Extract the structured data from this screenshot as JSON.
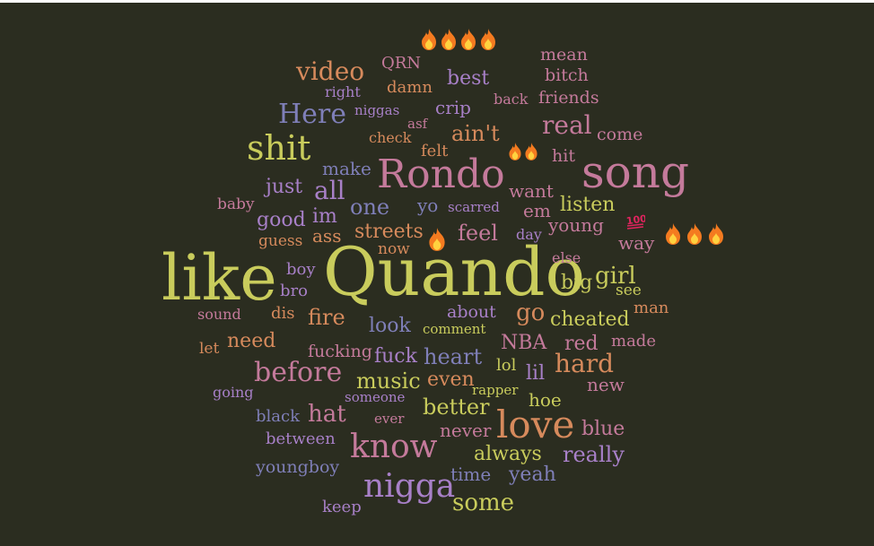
{
  "wordcloud": {
    "colors": {
      "green": "#c9cc5c",
      "mauve": "#c47a9b",
      "orange": "#d68a5c",
      "slate": "#7f7fb8",
      "purple": "#a880c8",
      "bg": "#2b2d20"
    },
    "words": [
      {
        "text": "like",
        "color": "#c9cc5c"
      },
      {
        "text": "Quando",
        "color": "#c9cc5c"
      },
      {
        "text": "song",
        "color": "#c47a9b"
      },
      {
        "text": "Rondo",
        "color": "#c47a9b"
      },
      {
        "text": "shit",
        "color": "#c9cc5c"
      },
      {
        "text": "love",
        "color": "#d68a5c"
      },
      {
        "text": "know",
        "color": "#c47a9b"
      },
      {
        "text": "nigga",
        "color": "#a880c8"
      },
      {
        "text": "Here",
        "color": "#7f7fb8"
      },
      {
        "text": "video",
        "color": "#d68a5c"
      },
      {
        "text": "real",
        "color": "#c47a9b"
      },
      {
        "text": "before",
        "color": "#c47a9b"
      },
      {
        "text": "hard",
        "color": "#d68a5c"
      },
      {
        "text": "girl",
        "color": "#c9cc5c"
      },
      {
        "text": "hat",
        "color": "#c47a9b"
      },
      {
        "text": "music",
        "color": "#c9cc5c"
      },
      {
        "text": "heart",
        "color": "#7f7fb8"
      },
      {
        "text": "better",
        "color": "#c9cc5c"
      },
      {
        "text": "some",
        "color": "#c9cc5c"
      },
      {
        "text": "ain't",
        "color": "#d68a5c"
      },
      {
        "text": "all",
        "color": "#a880c8"
      },
      {
        "text": "one",
        "color": "#7f7fb8"
      },
      {
        "text": "go",
        "color": "#d68a5c"
      },
      {
        "text": "fire",
        "color": "#d68a5c"
      },
      {
        "text": "feel",
        "color": "#c47a9b"
      },
      {
        "text": "cheated",
        "color": "#c9cc5c"
      },
      {
        "text": "really",
        "color": "#a880c8"
      },
      {
        "text": "best",
        "color": "#a880c8"
      },
      {
        "text": "listen",
        "color": "#c9cc5c"
      },
      {
        "text": "just",
        "color": "#a880c8"
      },
      {
        "text": "good",
        "color": "#a880c8"
      },
      {
        "text": "im",
        "color": "#a880c8"
      },
      {
        "text": "streets",
        "color": "#d68a5c"
      },
      {
        "text": "fuck",
        "color": "#a880c8"
      },
      {
        "text": "NBA",
        "color": "#c47a9b"
      },
      {
        "text": "red",
        "color": "#c47a9b"
      },
      {
        "text": "need",
        "color": "#d68a5c"
      },
      {
        "text": "look",
        "color": "#7f7fb8"
      },
      {
        "text": "big",
        "color": "#c9cc5c"
      },
      {
        "text": "blue",
        "color": "#c47a9b"
      },
      {
        "text": "always",
        "color": "#c9cc5c"
      },
      {
        "text": "yeah",
        "color": "#7f7fb8"
      },
      {
        "text": "even",
        "color": "#d68a5c"
      },
      {
        "text": "lil",
        "color": "#a880c8"
      },
      {
        "text": "make",
        "color": "#7f7fb8"
      },
      {
        "text": "ass",
        "color": "#d68a5c"
      },
      {
        "text": "want",
        "color": "#c47a9b"
      },
      {
        "text": "em",
        "color": "#c47a9b"
      },
      {
        "text": "crip",
        "color": "#a880c8"
      },
      {
        "text": "way",
        "color": "#c47a9b"
      },
      {
        "text": "young",
        "color": "#c47a9b"
      },
      {
        "text": "new",
        "color": "#c47a9b"
      },
      {
        "text": "hoe",
        "color": "#c9cc5c"
      },
      {
        "text": "never",
        "color": "#c47a9b"
      },
      {
        "text": "time",
        "color": "#7f7fb8"
      },
      {
        "text": "about",
        "color": "#a880c8"
      },
      {
        "text": "yo",
        "color": "#7f7fb8"
      },
      {
        "text": "friends",
        "color": "#c47a9b"
      },
      {
        "text": "come",
        "color": "#c47a9b"
      },
      {
        "text": "hit",
        "color": "#c47a9b"
      },
      {
        "text": "fucking",
        "color": "#c47a9b"
      },
      {
        "text": "youngboy",
        "color": "#7f7fb8"
      },
      {
        "text": "between",
        "color": "#a880c8"
      },
      {
        "text": "black",
        "color": "#7f7fb8"
      },
      {
        "text": "keep",
        "color": "#a880c8"
      },
      {
        "text": "boy",
        "color": "#a880c8"
      },
      {
        "text": "bro",
        "color": "#a880c8"
      },
      {
        "text": "dis",
        "color": "#d68a5c"
      },
      {
        "text": "man",
        "color": "#d68a5c"
      },
      {
        "text": "made",
        "color": "#c47a9b"
      },
      {
        "text": "see",
        "color": "#c9cc5c"
      },
      {
        "text": "mean",
        "color": "#c47a9b"
      },
      {
        "text": "bitch",
        "color": "#c47a9b"
      },
      {
        "text": "damn",
        "color": "#d68a5c"
      },
      {
        "text": "QRN",
        "color": "#c47a9b"
      },
      {
        "text": "felt",
        "color": "#d68a5c"
      },
      {
        "text": "lol",
        "color": "#c9cc5c"
      },
      {
        "text": "guess",
        "color": "#d68a5c"
      },
      {
        "text": "baby",
        "color": "#c47a9b"
      },
      {
        "text": "now",
        "color": "#d68a5c"
      },
      {
        "text": "let",
        "color": "#d68a5c"
      },
      {
        "text": "sound",
        "color": "#c47a9b"
      },
      {
        "text": "going",
        "color": "#a880c8"
      },
      {
        "text": "day",
        "color": "#a880c8"
      },
      {
        "text": "else",
        "color": "#c47a9b"
      },
      {
        "text": "comment",
        "color": "#c9cc5c"
      },
      {
        "text": "rapper",
        "color": "#c9cc5c"
      },
      {
        "text": "someone",
        "color": "#a880c8"
      },
      {
        "text": "ever",
        "color": "#c47a9b"
      },
      {
        "text": "check",
        "color": "#d68a5c"
      },
      {
        "text": "asf",
        "color": "#c47a9b"
      },
      {
        "text": "right",
        "color": "#a880c8"
      },
      {
        "text": "niggas",
        "color": "#a880c8"
      },
      {
        "text": "back",
        "color": "#c47a9b"
      },
      {
        "text": "scarred",
        "color": "#a880c8"
      }
    ],
    "emojis": [
      {
        "kind": "flame",
        "count": 4
      },
      {
        "kind": "flame",
        "count": 2
      },
      {
        "kind": "flame",
        "count": 1
      },
      {
        "kind": "flame",
        "count": 3
      },
      {
        "kind": "hundred",
        "count": 1
      }
    ]
  }
}
